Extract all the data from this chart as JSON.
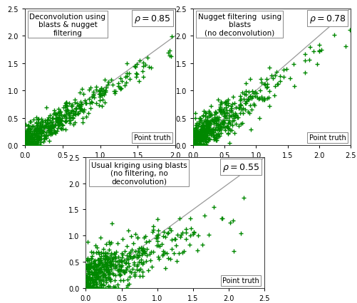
{
  "panels": [
    {
      "title": "Deconvolution using\nblasts & nugget\nfiltering",
      "rho_text": "\\rho = 0.85",
      "xlim": [
        0,
        2.0
      ],
      "ylim": [
        0,
        2.5
      ],
      "xticks": [
        0.0,
        0.5,
        1.0,
        1.5,
        2.0
      ],
      "yticks": [
        0.0,
        0.5,
        1.0,
        1.5,
        2.0,
        2.5
      ],
      "seed": 42,
      "n_points": 500,
      "corr": 0.85,
      "scale": 0.45,
      "noise_std": 0.12
    },
    {
      "title": "Nugget filtering  using\nblasts\n(no deconvolution)",
      "rho_text": "\\rho = 0.78",
      "xlim": [
        0,
        2.5
      ],
      "ylim": [
        0,
        2.5
      ],
      "xticks": [
        0.0,
        0.5,
        1.0,
        1.5,
        2.0,
        2.5
      ],
      "yticks": [
        0.0,
        0.5,
        1.0,
        1.5,
        2.0,
        2.5
      ],
      "seed": 123,
      "n_points": 500,
      "corr": 0.78,
      "scale": 0.45,
      "noise_std": 0.18
    },
    {
      "title": "Usual kriging using blasts\n(no filtering, no\ndeconvolution)",
      "rho_text": "\\rho = 0.55",
      "xlim": [
        0,
        2.5
      ],
      "ylim": [
        0,
        2.5
      ],
      "xticks": [
        0.0,
        0.5,
        1.0,
        1.5,
        2.0,
        2.5
      ],
      "yticks": [
        0.0,
        0.5,
        1.0,
        1.5,
        2.0,
        2.5
      ],
      "seed": 7,
      "n_points": 500,
      "corr": 0.55,
      "scale": 0.45,
      "noise_std": 0.22
    }
  ],
  "marker_color": "#008800",
  "marker": "+",
  "markersize": 4,
  "markeredgewidth": 1.0,
  "linewidth_diag": 0.9,
  "diag_color": "#999999",
  "background_color": "#ffffff",
  "fontsize_title": 7.5,
  "fontsize_rho": 9,
  "fontsize_tick": 7,
  "fontsize_label": 7
}
